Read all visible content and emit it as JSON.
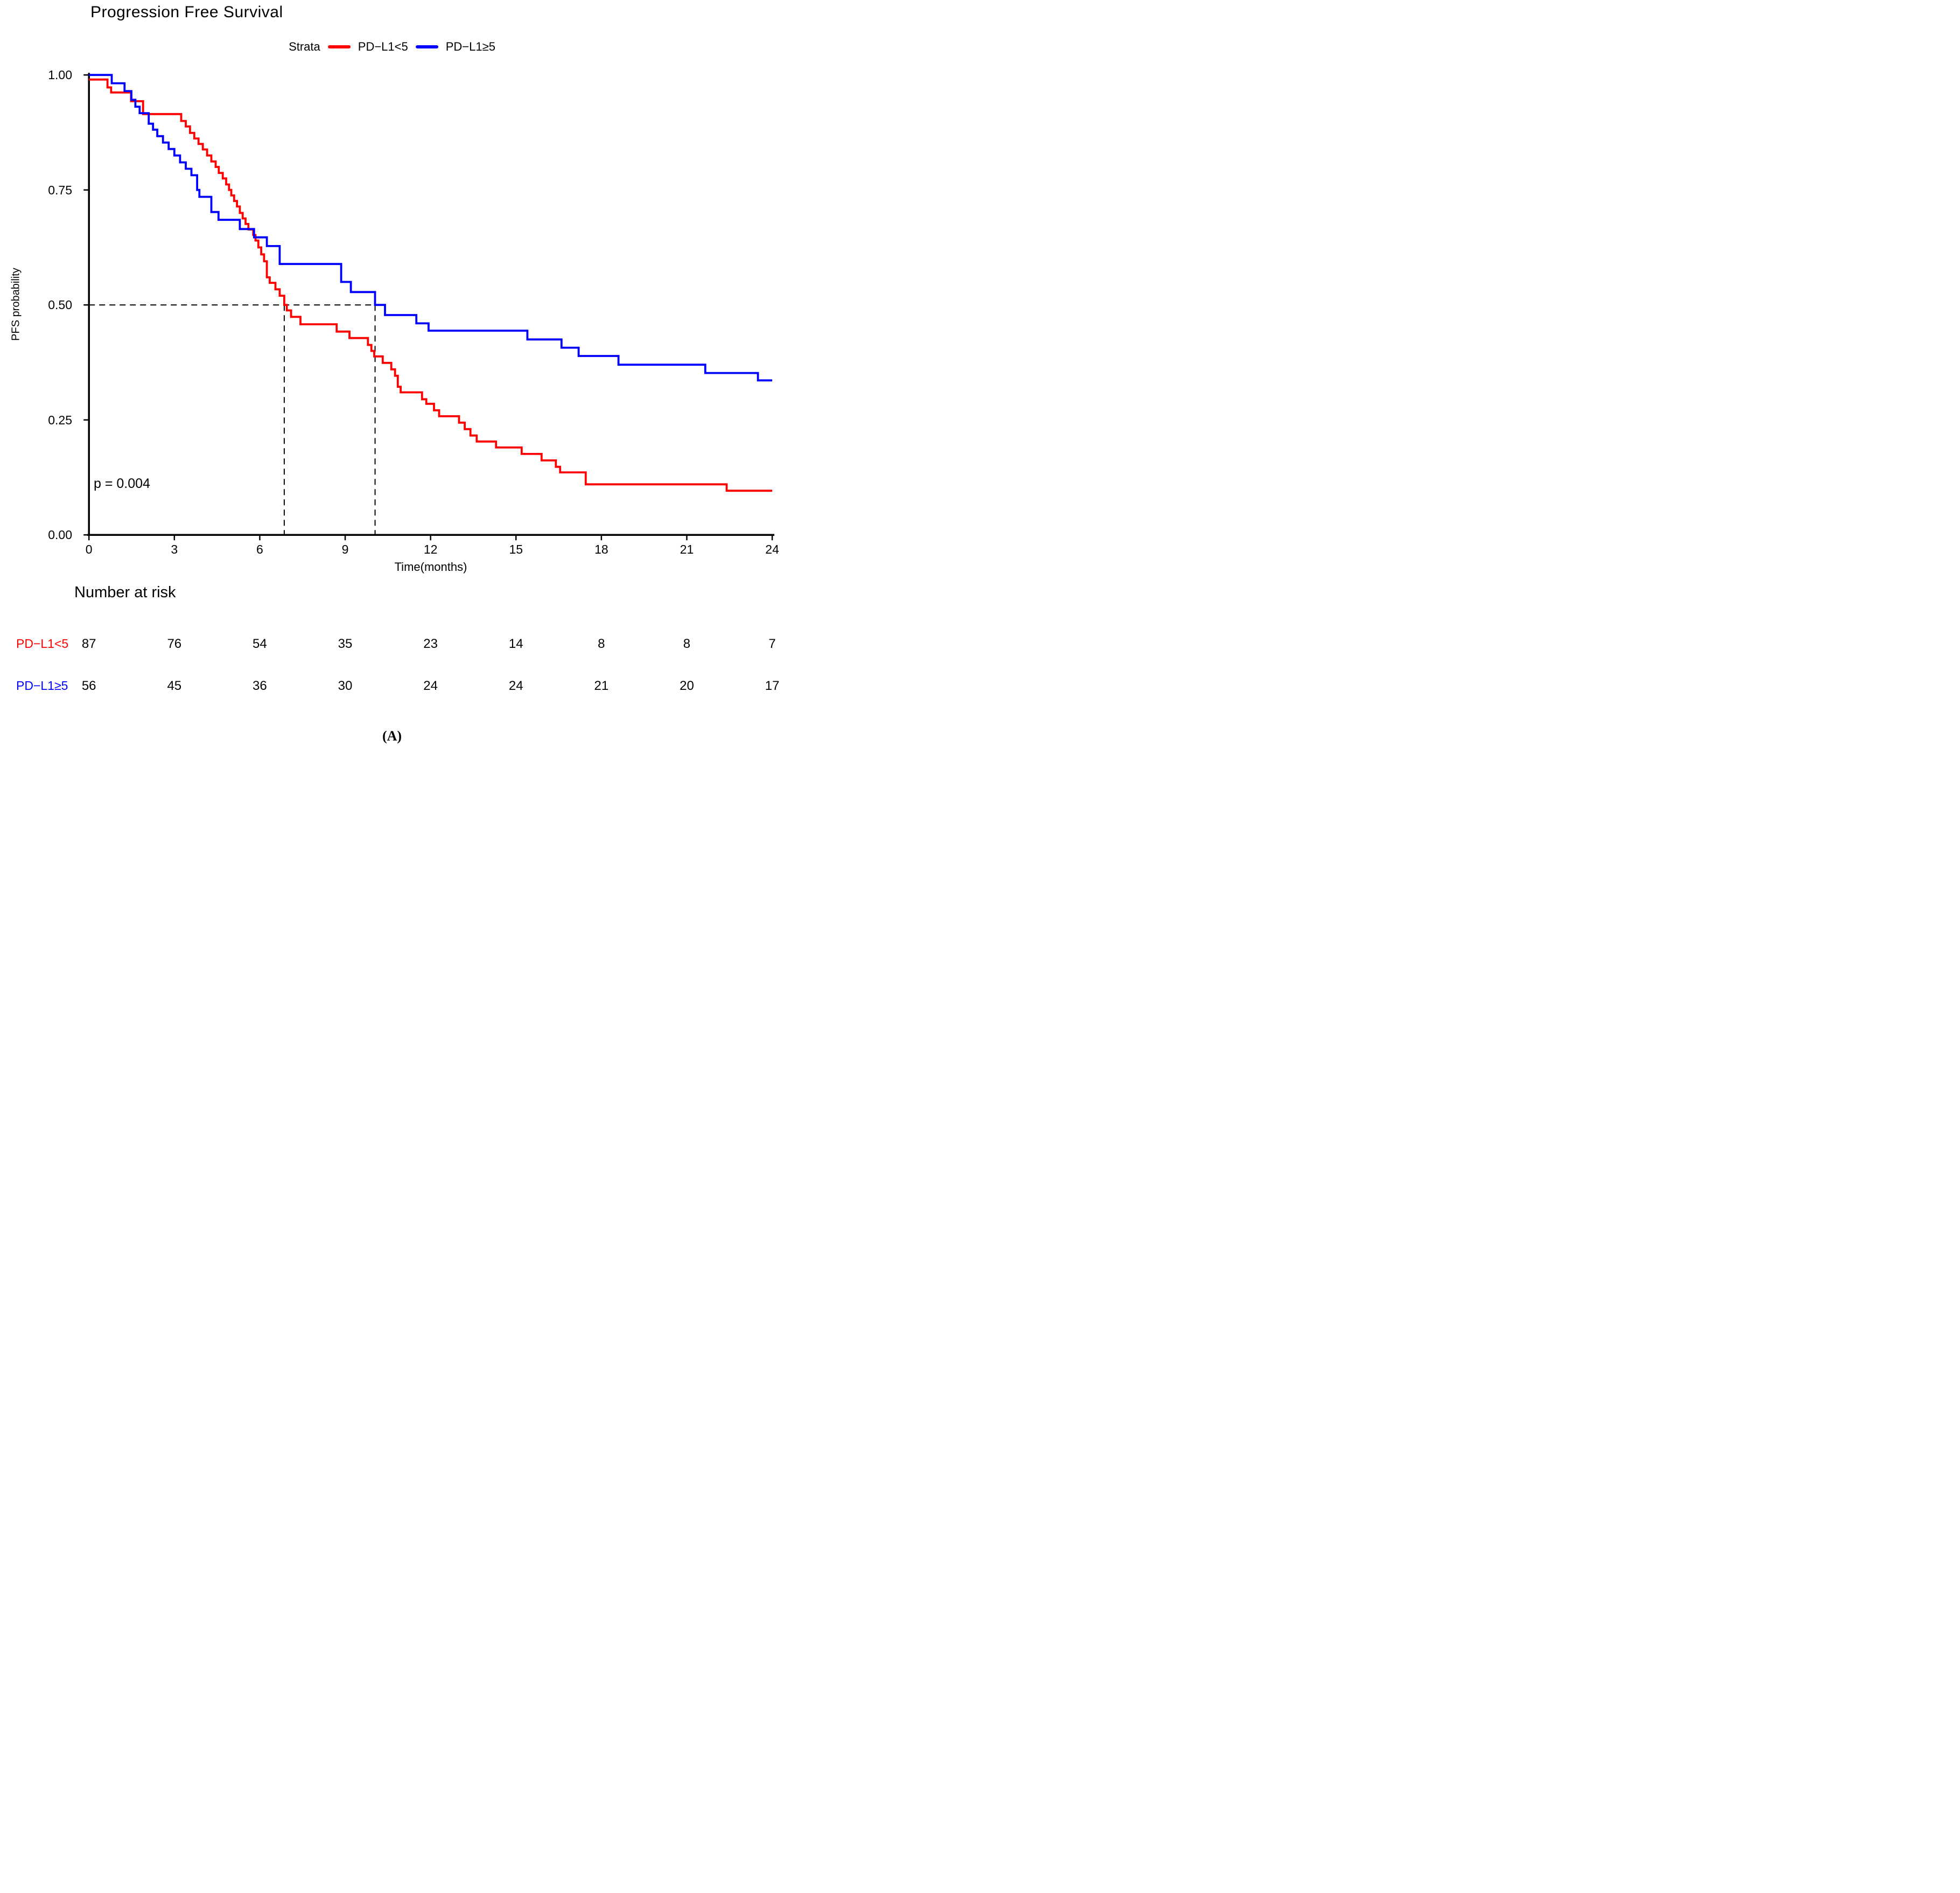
{
  "title": "Progression Free Survival",
  "legend": {
    "strata_label": "Strata",
    "items": [
      {
        "label": "PD−L1<5",
        "color": "#FF0000"
      },
      {
        "label": "PD−L1≥5",
        "color": "#0000FF"
      }
    ]
  },
  "pvalue_text": "p = 0.004",
  "panel_label": "(A)",
  "chart_data": {
    "type": "line",
    "subtype": "kaplan_meier_step",
    "title": "Progression Free Survival",
    "xlabel": "Time(months)",
    "ylabel": "PFS probability",
    "xlim": [
      0,
      24
    ],
    "ylim": [
      0.0,
      1.0
    ],
    "grid": false,
    "legend_position": "top",
    "xticks": [
      0,
      3,
      6,
      9,
      12,
      15,
      18,
      21,
      24
    ],
    "yticks": [
      {
        "value": 1.0,
        "label": "1.00"
      },
      {
        "value": 0.75,
        "label": "0.75"
      },
      {
        "value": 0.5,
        "label": "0.50"
      },
      {
        "value": 0.25,
        "label": "0.25"
      },
      {
        "value": 0.0,
        "label": "0.00"
      }
    ],
    "median_annotations": {
      "probability_level": 0.5,
      "dashed_color": "#000000",
      "series_medians": [
        {
          "name": "PD−L1<5",
          "median_months": 6.86
        },
        {
          "name": "PD−L1≥5",
          "median_months": 10.05
        }
      ]
    },
    "series": [
      {
        "name": "PD−L1<5",
        "color": "#FF0000",
        "steps": [
          [
            0,
            0.99
          ],
          [
            0.65,
            0.973
          ],
          [
            0.78,
            0.962
          ],
          [
            1.48,
            0.943
          ],
          [
            1.9,
            0.915
          ],
          [
            3.24,
            0.9
          ],
          [
            3.4,
            0.888
          ],
          [
            3.55,
            0.874
          ],
          [
            3.7,
            0.862
          ],
          [
            3.85,
            0.85
          ],
          [
            4.0,
            0.838
          ],
          [
            4.15,
            0.825
          ],
          [
            4.3,
            0.812
          ],
          [
            4.45,
            0.8
          ],
          [
            4.56,
            0.787
          ],
          [
            4.7,
            0.775
          ],
          [
            4.82,
            0.762
          ],
          [
            4.92,
            0.75
          ],
          [
            5.0,
            0.738
          ],
          [
            5.1,
            0.726
          ],
          [
            5.2,
            0.714
          ],
          [
            5.3,
            0.7
          ],
          [
            5.4,
            0.688
          ],
          [
            5.5,
            0.676
          ],
          [
            5.6,
            0.664
          ],
          [
            5.77,
            0.652
          ],
          [
            5.85,
            0.64
          ],
          [
            5.95,
            0.625
          ],
          [
            6.05,
            0.61
          ],
          [
            6.15,
            0.595
          ],
          [
            6.25,
            0.56
          ],
          [
            6.35,
            0.548
          ],
          [
            6.55,
            0.534
          ],
          [
            6.7,
            0.52
          ],
          [
            6.86,
            0.5
          ],
          [
            6.95,
            0.488
          ],
          [
            7.1,
            0.474
          ],
          [
            7.43,
            0.458
          ],
          [
            8.7,
            0.442
          ],
          [
            9.15,
            0.428
          ],
          [
            9.8,
            0.413
          ],
          [
            9.92,
            0.4
          ],
          [
            10.02,
            0.388
          ],
          [
            10.32,
            0.374
          ],
          [
            10.62,
            0.36
          ],
          [
            10.75,
            0.346
          ],
          [
            10.85,
            0.322
          ],
          [
            10.95,
            0.31
          ],
          [
            11.7,
            0.295
          ],
          [
            11.85,
            0.285
          ],
          [
            12.12,
            0.271
          ],
          [
            12.3,
            0.258
          ],
          [
            13.0,
            0.244
          ],
          [
            13.2,
            0.23
          ],
          [
            13.4,
            0.216
          ],
          [
            13.62,
            0.203
          ],
          [
            14.3,
            0.19
          ],
          [
            15.2,
            0.176
          ],
          [
            15.9,
            0.162
          ],
          [
            16.4,
            0.148
          ],
          [
            16.55,
            0.136
          ],
          [
            17.45,
            0.11
          ],
          [
            22.4,
            0.096
          ],
          [
            24,
            0.096
          ]
        ]
      },
      {
        "name": "PD−L1≥5",
        "color": "#0000FF",
        "steps": [
          [
            0,
            1.0
          ],
          [
            0.8,
            0.982
          ],
          [
            1.25,
            0.965
          ],
          [
            1.49,
            0.946
          ],
          [
            1.63,
            0.931
          ],
          [
            1.78,
            0.917
          ],
          [
            2.1,
            0.894
          ],
          [
            2.25,
            0.881
          ],
          [
            2.4,
            0.867
          ],
          [
            2.6,
            0.853
          ],
          [
            2.8,
            0.839
          ],
          [
            3.0,
            0.825
          ],
          [
            3.2,
            0.81
          ],
          [
            3.4,
            0.796
          ],
          [
            3.6,
            0.782
          ],
          [
            3.8,
            0.75
          ],
          [
            3.88,
            0.735
          ],
          [
            4.3,
            0.702
          ],
          [
            4.55,
            0.685
          ],
          [
            5.3,
            0.665
          ],
          [
            5.8,
            0.647
          ],
          [
            6.25,
            0.628
          ],
          [
            6.7,
            0.589
          ],
          [
            8.86,
            0.55
          ],
          [
            9.2,
            0.528
          ],
          [
            10.05,
            0.5
          ],
          [
            10.4,
            0.478
          ],
          [
            11.5,
            0.46
          ],
          [
            11.93,
            0.444
          ],
          [
            15.4,
            0.425
          ],
          [
            16.6,
            0.407
          ],
          [
            17.2,
            0.389
          ],
          [
            18.6,
            0.37
          ],
          [
            21.65,
            0.352
          ],
          [
            23.5,
            0.336
          ],
          [
            24,
            0.336
          ]
        ]
      }
    ]
  },
  "risk_table": {
    "header": "Number at risk",
    "time_points": [
      0,
      3,
      6,
      9,
      12,
      15,
      18,
      21,
      24
    ],
    "rows": [
      {
        "label": "PD−L1<5",
        "color": "#FF0000",
        "values": [
          87,
          76,
          54,
          35,
          23,
          14,
          8,
          8,
          7
        ]
      },
      {
        "label": "PD−L1≥5",
        "color": "#0000FF",
        "values": [
          56,
          45,
          36,
          30,
          24,
          24,
          21,
          20,
          17
        ]
      }
    ]
  }
}
